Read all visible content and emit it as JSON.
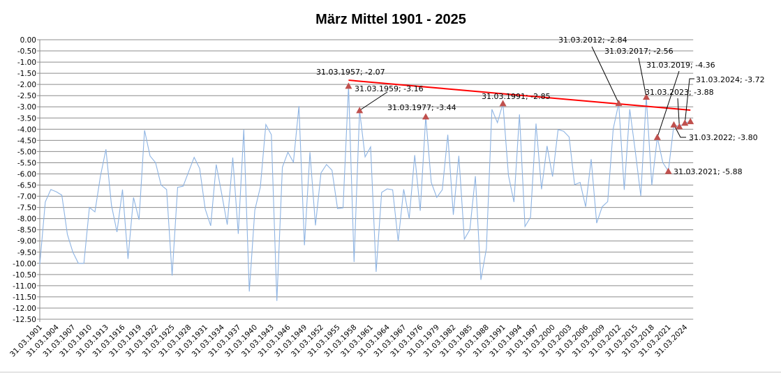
{
  "chart_data": {
    "type": "line",
    "title": "März Mittel 1901 - 2025",
    "xlabel": "",
    "ylabel": "",
    "ylim": [
      -12.5,
      0
    ],
    "ytick_step": 0.5,
    "grid": true,
    "legend": "none",
    "date_prefix": "31.03.",
    "x_tick_every": 3,
    "years": [
      1901,
      1902,
      1903,
      1904,
      1905,
      1906,
      1907,
      1908,
      1909,
      1910,
      1911,
      1912,
      1913,
      1914,
      1915,
      1916,
      1917,
      1918,
      1919,
      1920,
      1921,
      1922,
      1923,
      1924,
      1925,
      1926,
      1927,
      1928,
      1929,
      1930,
      1931,
      1932,
      1933,
      1934,
      1935,
      1936,
      1937,
      1938,
      1939,
      1940,
      1941,
      1942,
      1943,
      1944,
      1945,
      1946,
      1947,
      1948,
      1949,
      1950,
      1951,
      1952,
      1953,
      1954,
      1955,
      1956,
      1957,
      1958,
      1959,
      1960,
      1961,
      1962,
      1963,
      1964,
      1965,
      1966,
      1967,
      1974,
      1975,
      1976,
      1977,
      1978,
      1979,
      1980,
      1981,
      1982,
      1983,
      1984,
      1985,
      1986,
      1987,
      1988,
      1989,
      1990,
      1991,
      1992,
      1993,
      1994,
      1995,
      1996,
      1997,
      1998,
      1999,
      2000,
      2001,
      2002,
      2003,
      2004,
      2005,
      2006,
      2007,
      2008,
      2009,
      2010,
      2011,
      2012,
      2013,
      2014,
      2015,
      2016,
      2017,
      2018,
      2019,
      2020,
      2021,
      2022,
      2023,
      2024,
      2025
    ],
    "series": [
      {
        "name": "März Mittel",
        "color": "#8eb4e3",
        "values": [
          -10.05,
          -7.25,
          -6.7,
          -6.8,
          -6.95,
          -8.7,
          -9.5,
          -10.0,
          -10.0,
          -7.5,
          -7.7,
          -6.1,
          -4.9,
          -7.4,
          -8.6,
          -6.7,
          -9.8,
          -7.05,
          -8.05,
          -4.05,
          -5.2,
          -5.5,
          -6.5,
          -6.7,
          -10.55,
          -6.6,
          -6.55,
          -5.9,
          -5.26,
          -5.76,
          -7.57,
          -8.32,
          -5.58,
          -6.9,
          -8.27,
          -5.27,
          -8.68,
          -4.01,
          -11.26,
          -7.62,
          -6.59,
          -3.79,
          -4.25,
          -11.68,
          -5.7,
          -5.03,
          -5.48,
          -2.97,
          -9.19,
          -5.03,
          -8.3,
          -5.96,
          -5.58,
          -5.84,
          -7.55,
          -7.52,
          -2.07,
          -9.94,
          -3.16,
          -5.24,
          -4.79,
          -10.38,
          -6.83,
          -6.67,
          -6.71,
          -9.01,
          -6.69,
          -7.99,
          -5.16,
          -7.65,
          -3.44,
          -6.38,
          -7.05,
          -6.71,
          -4.25,
          -7.83,
          -5.19,
          -8.92,
          -8.49,
          -6.1,
          -10.74,
          -9.34,
          -3.11,
          -3.71,
          -2.85,
          -6.07,
          -7.26,
          -3.34,
          -8.35,
          -7.94,
          -3.75,
          -6.69,
          -4.75,
          -6.12,
          -4.02,
          -4.09,
          -4.35,
          -6.48,
          -6.38,
          -7.47,
          -5.34,
          -8.2,
          -7.47,
          -7.24,
          -3.99,
          -2.84,
          -6.71,
          -3.11,
          -4.98,
          -6.98,
          -2.56,
          -6.5,
          -4.36,
          -5.5,
          -5.88,
          -3.8,
          -3.88,
          -3.72,
          -3.65
        ]
      }
    ],
    "trendline": {
      "color": "#ff0000",
      "from_year": 1957,
      "to_year": 2025,
      "start_value": -1.81,
      "end_value": -3.15
    },
    "marker_color": "#c0504d",
    "annotations": [
      {
        "year": 1957,
        "label": "31.03.1957; -2.07"
      },
      {
        "year": 1959,
        "label": "31.03.1959; -3.16"
      },
      {
        "year": 1977,
        "label": "31.03.1977; -3.44"
      },
      {
        "year": 1991,
        "label": "31.03.1991;  -2.85"
      },
      {
        "year": 2012,
        "label": "31.03.2012; -2.84"
      },
      {
        "year": 2017,
        "label": "31.03.2017; -2.56"
      },
      {
        "year": 2019,
        "label": "31.03.2019; -4.36"
      },
      {
        "year": 2021,
        "label": "31.03.2021; -5.88"
      },
      {
        "year": 2022,
        "label": "31.03.2022; -3.80"
      },
      {
        "year": 2023,
        "label": "31.03.2023; -3.88"
      },
      {
        "year": 2024,
        "label": "31.03.2024; -3.72"
      },
      {
        "year": 2025,
        "label": ""
      }
    ]
  }
}
